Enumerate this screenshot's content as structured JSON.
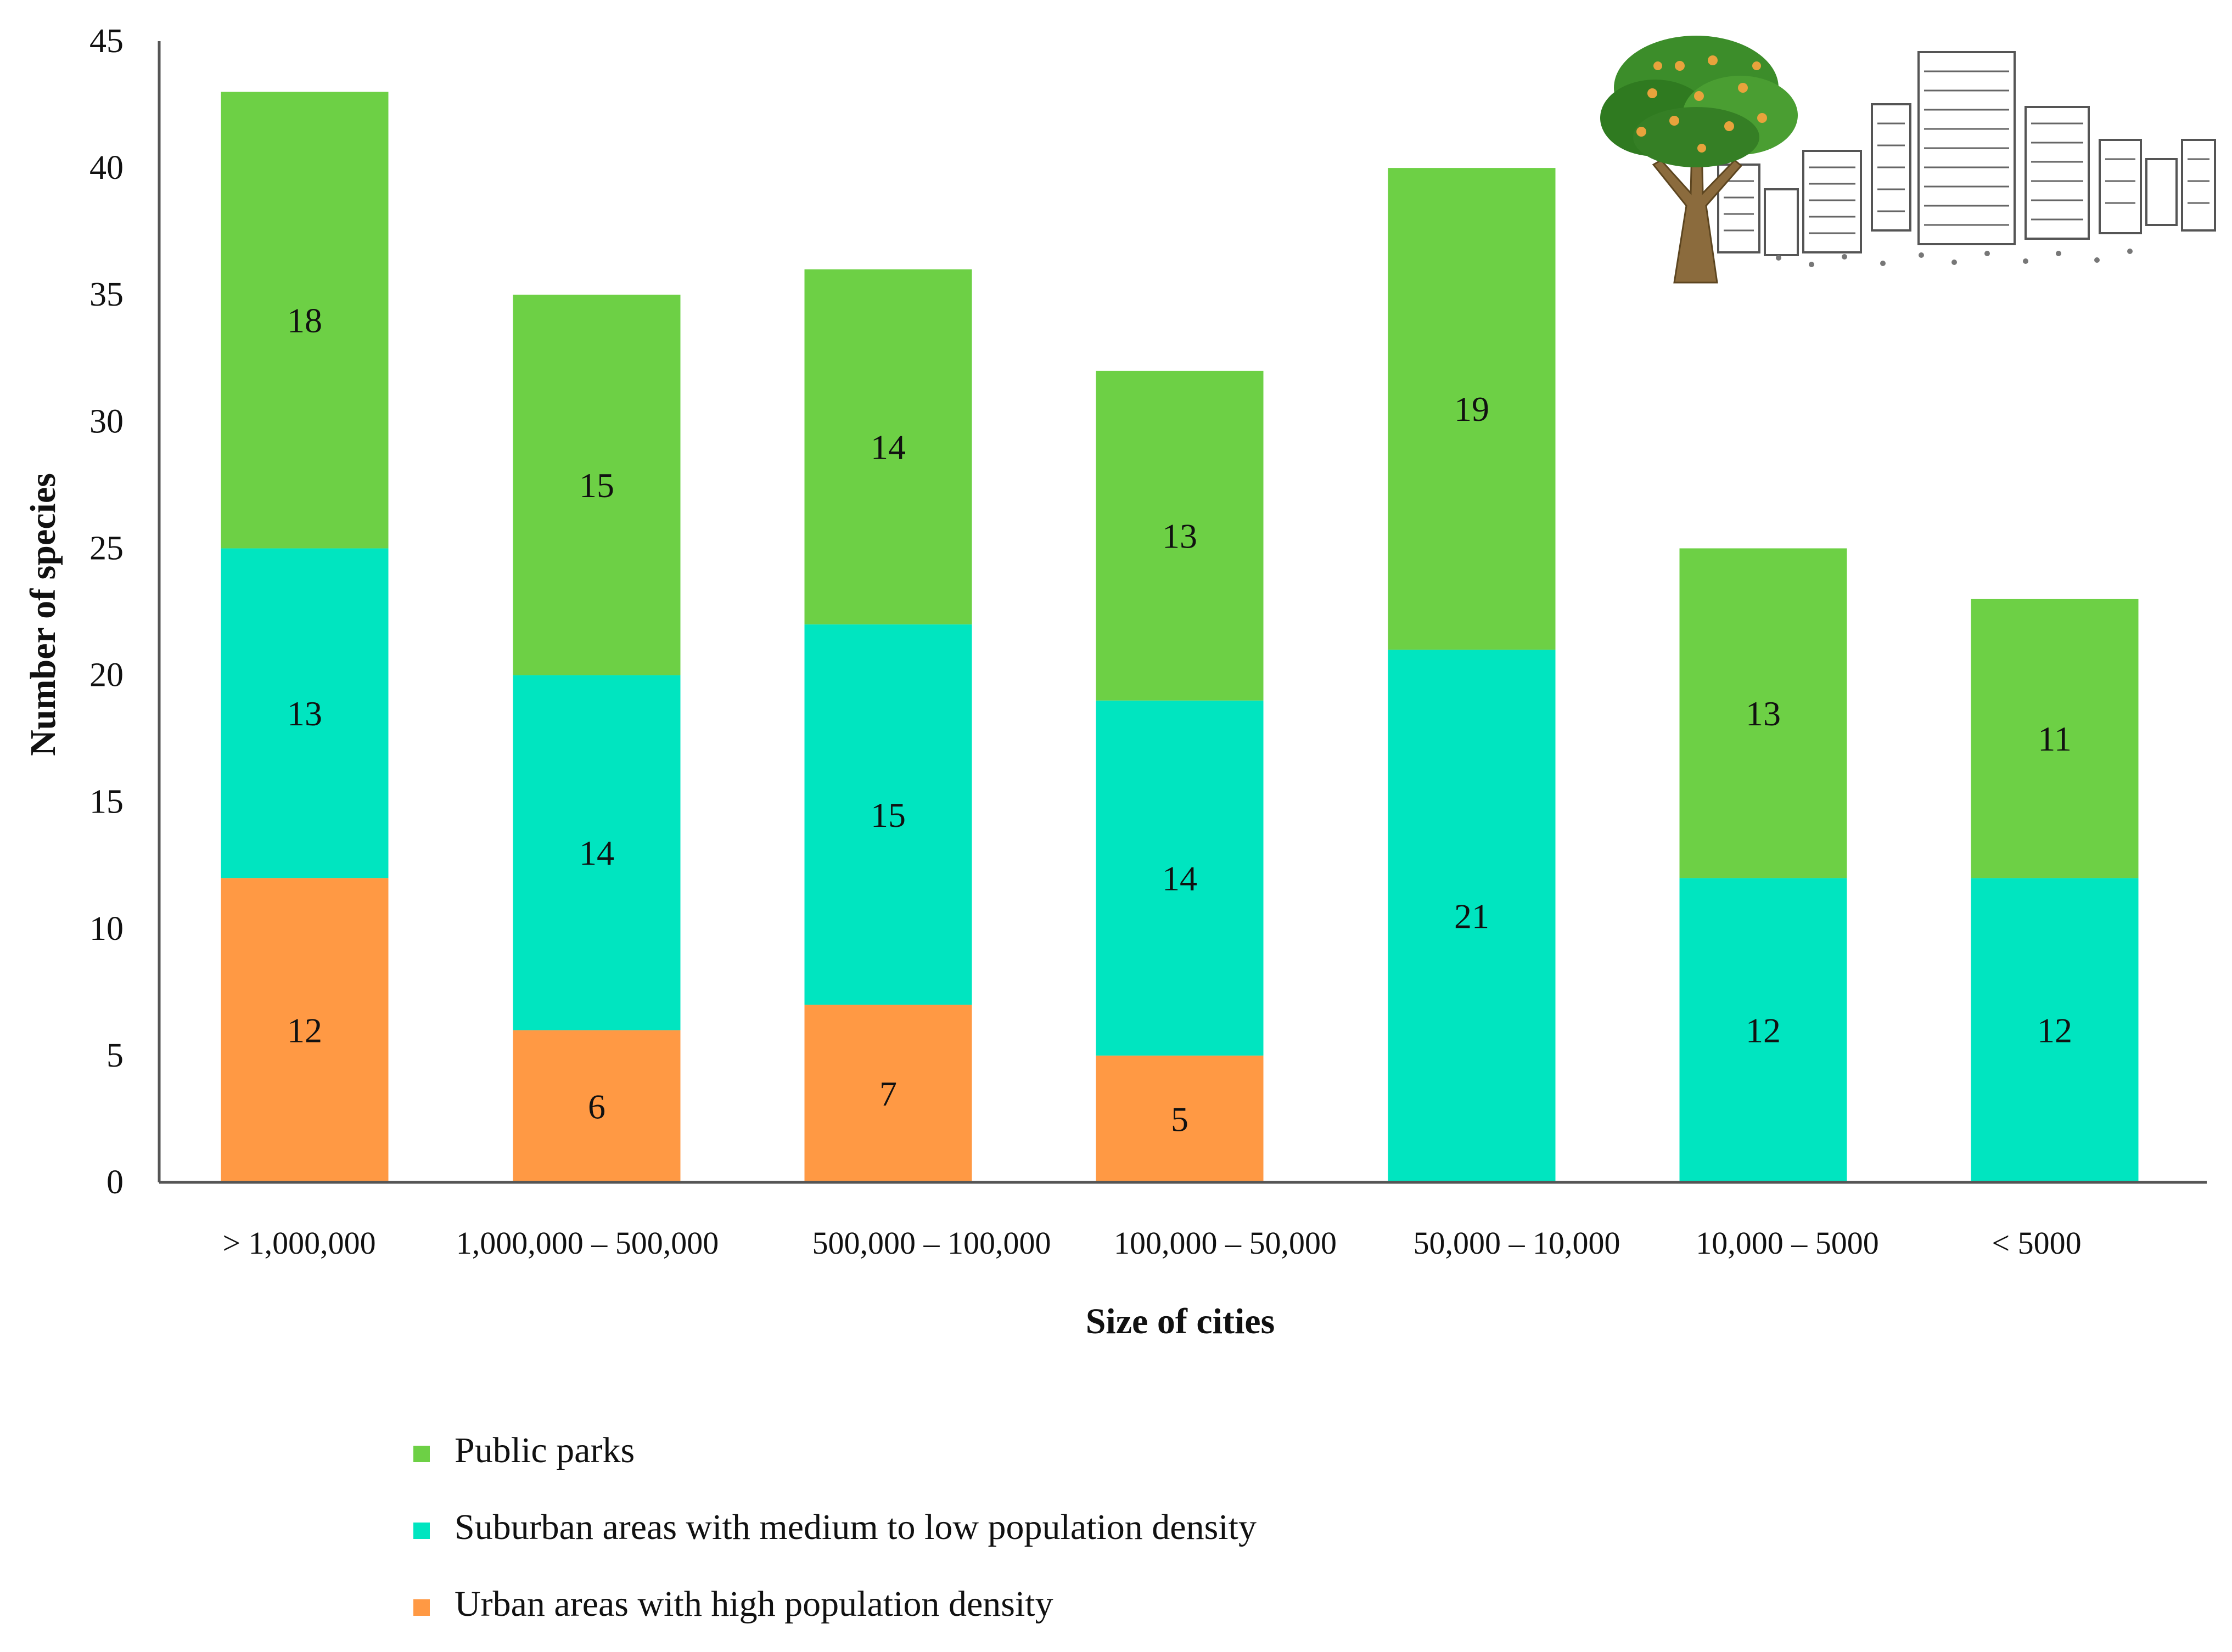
{
  "chart_data": {
    "type": "bar",
    "stacked": true,
    "title": "",
    "xlabel": "Size of cities",
    "ylabel": "Number of species",
    "ylim": [
      0,
      45
    ],
    "yticks": [
      0,
      5,
      10,
      15,
      20,
      25,
      30,
      35,
      40,
      45
    ],
    "categories": [
      "> 1,000,000",
      "1,000,000 – 500,000",
      "500,000 – 100,000",
      "100,000 – 50,000",
      "50,000 – 10,000",
      "10,000 – 5000",
      "< 5000"
    ],
    "series": [
      {
        "name": "Urban areas with high population density",
        "color": "#FF9944",
        "values": [
          12,
          6,
          7,
          5,
          0,
          0,
          0
        ]
      },
      {
        "name": "Suburban areas with medium to low population density",
        "color": "#00E5C0",
        "values": [
          13,
          14,
          15,
          14,
          21,
          12,
          12
        ]
      },
      {
        "name": "Public parks",
        "color": "#6DD045",
        "values": [
          18,
          15,
          14,
          13,
          19,
          13,
          11
        ]
      }
    ],
    "legend_order": [
      "Public parks",
      "Suburban areas with medium to low population density",
      "Urban areas with high population density"
    ],
    "legend_position": "bottom-left",
    "decoration": [
      "tree-illustration",
      "city-skyline-illustration"
    ]
  }
}
